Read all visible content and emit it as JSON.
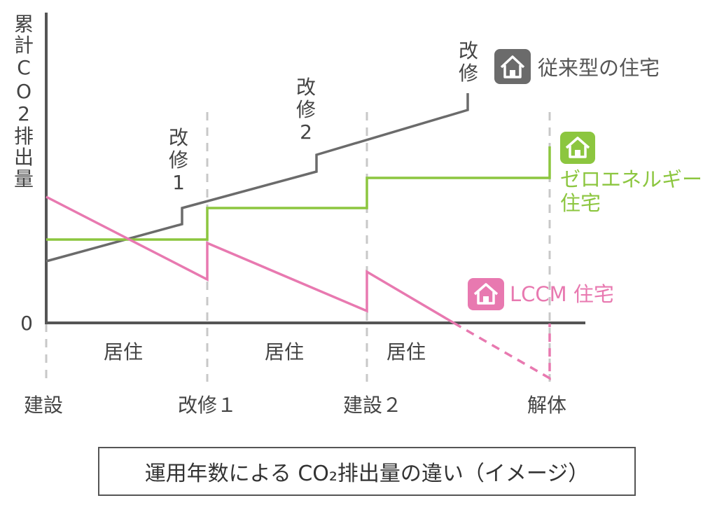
{
  "colors": {
    "axis": "#555555",
    "divider": "#c8c8c8",
    "conventional": "#6b6b6b",
    "zero_energy": "#8cc63f",
    "lccm": "#e879b0",
    "text": "#444444"
  },
  "y_axis": {
    "label_chars": [
      "累",
      "計",
      "C",
      "O",
      "2",
      "排",
      "出",
      "量"
    ],
    "zero_label": "0"
  },
  "x_axis": {
    "milestones": [
      "建設",
      "改修１",
      "建設２",
      "解体"
    ],
    "periods": [
      "居住",
      "居住",
      "居住"
    ]
  },
  "renovation_labels": [
    {
      "lines": [
        "改",
        "修",
        "1"
      ]
    },
    {
      "lines": [
        "改",
        "修",
        "2"
      ]
    },
    {
      "lines": [
        "改",
        "修"
      ]
    }
  ],
  "legend": {
    "conventional": {
      "label": "従来型の住宅",
      "icon": "house-icon"
    },
    "zero_energy": {
      "label_lines": [
        "ゼロエネルギー",
        "住宅"
      ],
      "icon": "house-icon"
    },
    "lccm": {
      "label": "LCCM 住宅",
      "icon": "house-icon"
    }
  },
  "caption": "運用年数による CO₂排出量の違い（イメージ）"
}
